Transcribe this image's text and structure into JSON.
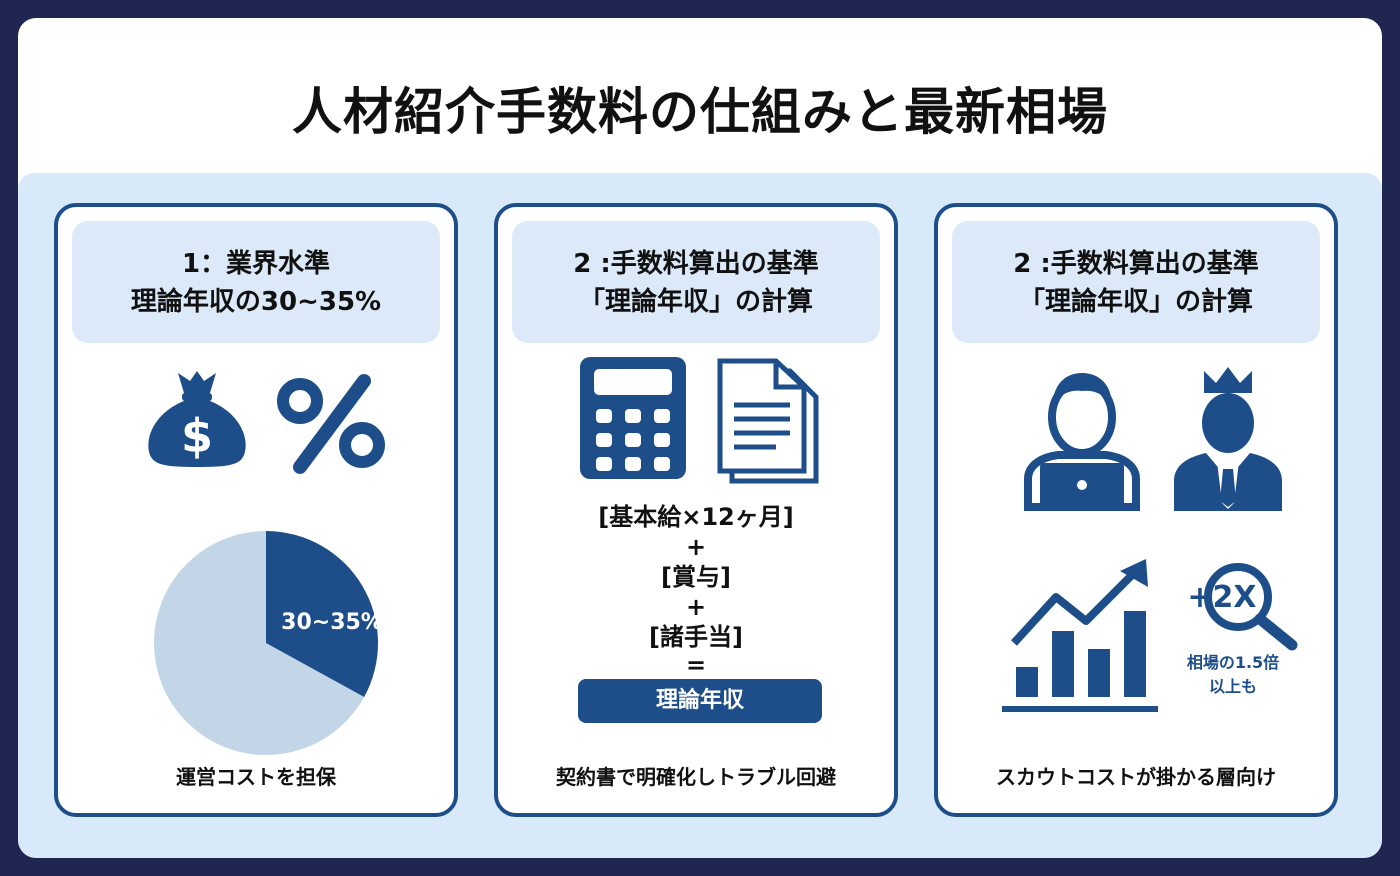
{
  "title": "人材紹介手数料の仕組みと最新相場",
  "colors": {
    "navy": "#1d4e89",
    "background": "#1f2651",
    "panel": "#d8e9fa",
    "light_slice": "#c3d6e8"
  },
  "cards": [
    {
      "head_line1": "1：業界水準",
      "head_line2": "理論年収の30~35%",
      "icons": [
        "money-bag-icon",
        "percent-icon"
      ],
      "pie_label": "30~35%",
      "pie_share_percent": 33,
      "footer": "運営コストを担保"
    },
    {
      "head_line1": "2 :手数料算出の基準",
      "head_line2": "「理論年収」の計算",
      "icons": [
        "calculator-icon",
        "document-icon"
      ],
      "formula": {
        "line1": "[基本給×12ヶ月]",
        "plus1": "+",
        "line2": "[賞与]",
        "plus2": "+",
        "line3": "[諸手当]",
        "equals": "="
      },
      "result": "理論年収",
      "footer": "契約書で明確化しトラブル回避"
    },
    {
      "head_line1": "2 :手数料算出の基準",
      "head_line2": "「理論年収」の計算",
      "icons": [
        "user-laptop-icon",
        "executive-crown-icon",
        "growth-chart-icon",
        "magnifier-2x-icon"
      ],
      "magnifier_text": "+2X",
      "note_line1": "相場の1.5倍",
      "note_line2": "以上も",
      "footer": "スカウトコストが掛かる層向け"
    }
  ]
}
